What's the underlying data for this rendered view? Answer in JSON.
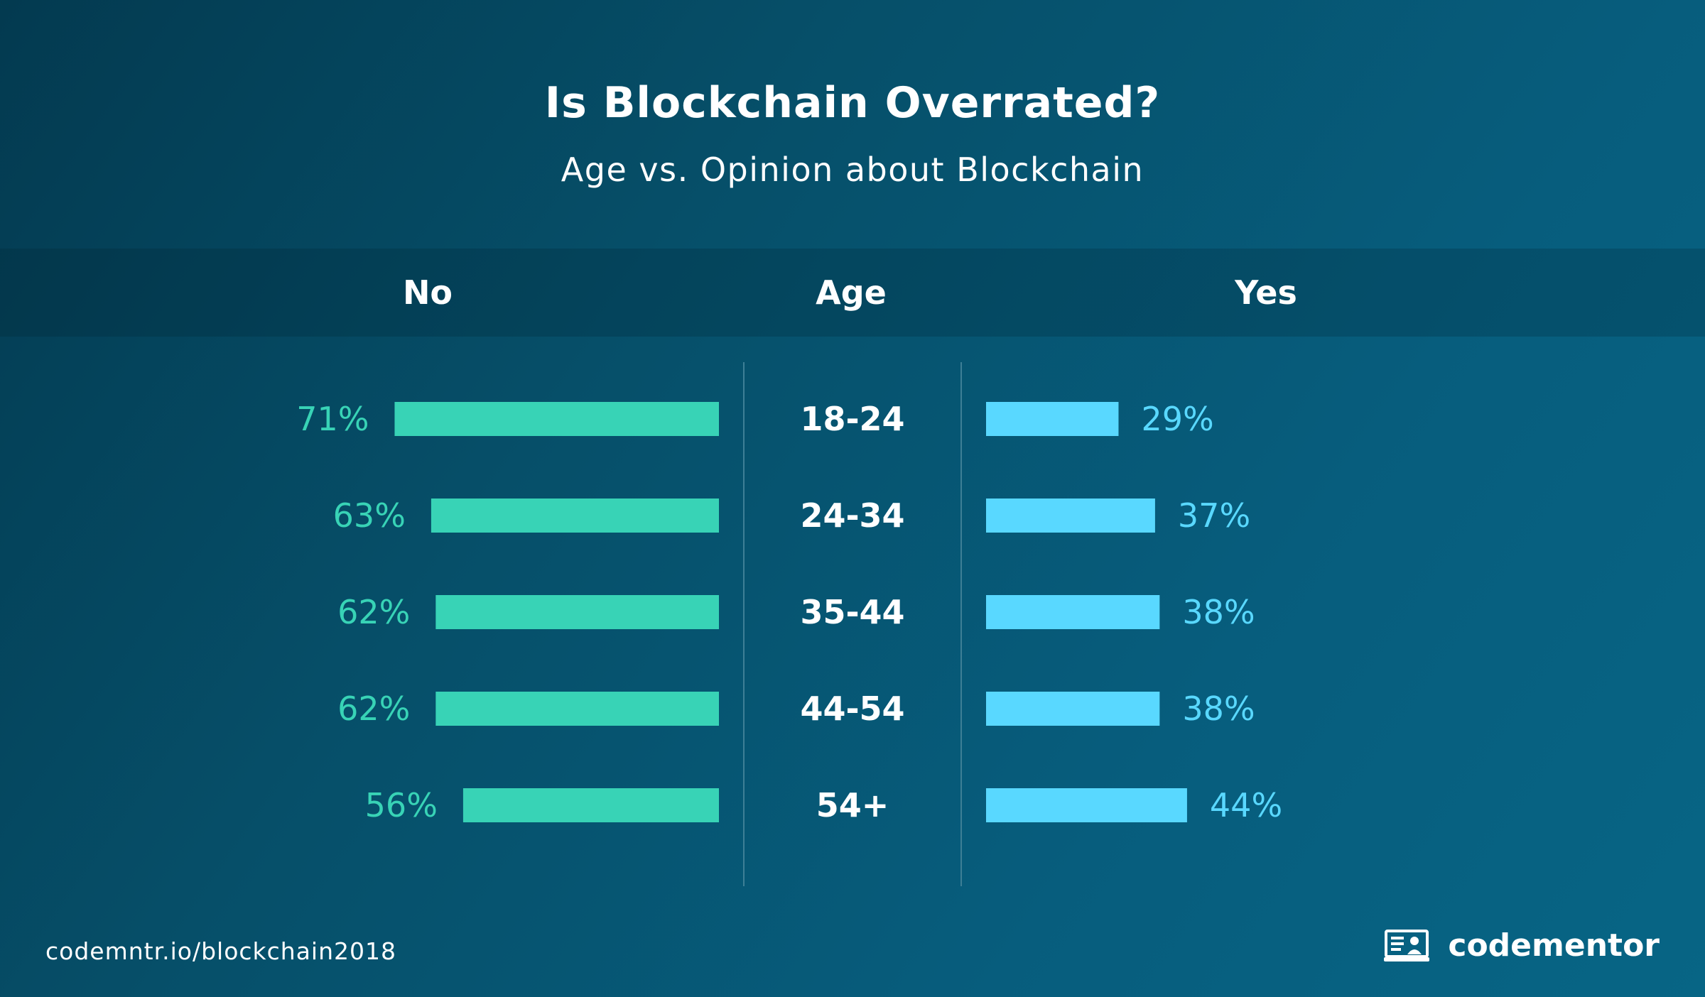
{
  "header": {
    "title": "Is Blockchain Overrated?",
    "subtitle": "Age vs. Opinion about Blockchain"
  },
  "columns": {
    "left": "No",
    "middle": "Age",
    "right": "Yes"
  },
  "footer": {
    "url": "codemntr.io/blockchain2018",
    "brand_name": "codementor",
    "brand_icon": "codementor-logo-icon"
  },
  "colors": {
    "no_bar": "#38d3b6",
    "yes_bar": "#59d8ff",
    "divider": "#3e7f96",
    "age_label": "#ffffff"
  },
  "chart_data": {
    "type": "bar",
    "orientation": "horizontal-diverging",
    "categories": [
      "18-24",
      "24-34",
      "35-44",
      "44-54",
      "54+"
    ],
    "series": [
      {
        "name": "No",
        "values": [
          71,
          63,
          62,
          62,
          56
        ],
        "labels": [
          "71%",
          "63%",
          "62%",
          "62%",
          "56%"
        ]
      },
      {
        "name": "Yes",
        "values": [
          29,
          37,
          38,
          38,
          44
        ],
        "labels": [
          "29%",
          "37%",
          "38%",
          "38%",
          "44%"
        ]
      }
    ],
    "title": "Is Blockchain Overrated?",
    "subtitle": "Age vs. Opinion about Blockchain",
    "xlabel": "",
    "ylabel": "Age",
    "xlim": [
      0,
      100
    ],
    "grid": false,
    "legend": "top"
  }
}
